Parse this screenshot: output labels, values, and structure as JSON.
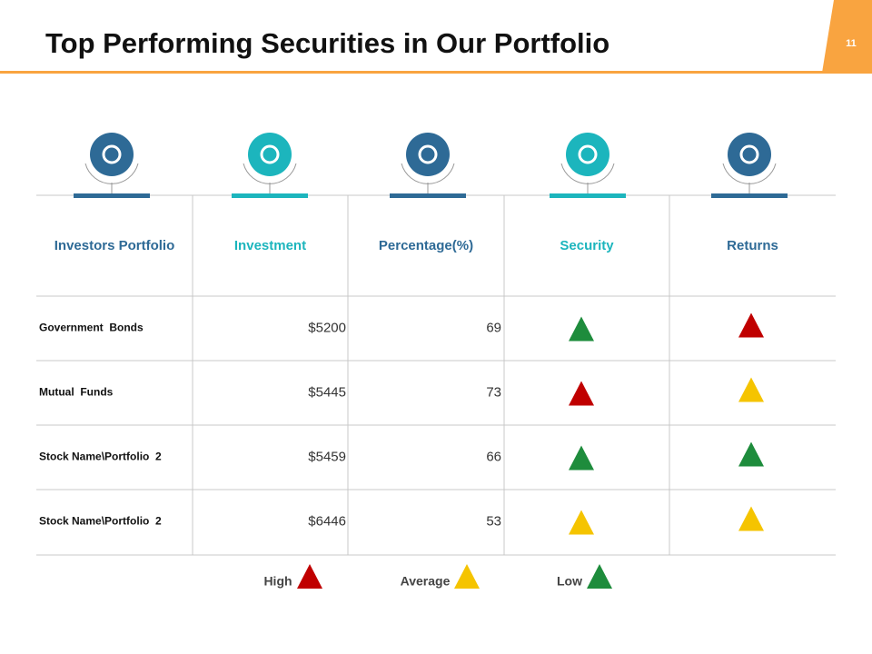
{
  "header": {
    "title": "Top Performing Securities in Our Portfolio",
    "page_number": "11"
  },
  "table": {
    "headers": [
      "Investors Portfolio",
      "Investment",
      "Percentage(%)",
      "Security",
      "Returns"
    ],
    "header_colors": [
      "#2e6a96",
      "#1cb5bd",
      "#2e6a96",
      "#1cb5bd",
      "#2e6a96"
    ],
    "rows": [
      {
        "name": "Government  Bonds",
        "investment": "$5200",
        "percentage": 69,
        "security": "#1e8c3c",
        "returns": "#c00000"
      },
      {
        "name": "Mutual  Funds",
        "investment": "$5445",
        "percentage": 73,
        "security": "#c00000",
        "returns": "#f5c400"
      },
      {
        "name": "Stock Name\\Portfolio  2",
        "investment": "$5459",
        "percentage": 66,
        "security": "#1e8c3c",
        "returns": "#1e8c3c"
      },
      {
        "name": "Stock Name\\Portfolio  2",
        "investment": "$6446",
        "percentage": 53,
        "security": "#f5c400",
        "returns": "#f5c400"
      }
    ]
  },
  "legend": [
    {
      "label": "High",
      "color": "#c00000"
    },
    {
      "label": "Average",
      "color": "#f5c400"
    },
    {
      "label": "Low",
      "color": "#1e8c3c"
    }
  ]
}
